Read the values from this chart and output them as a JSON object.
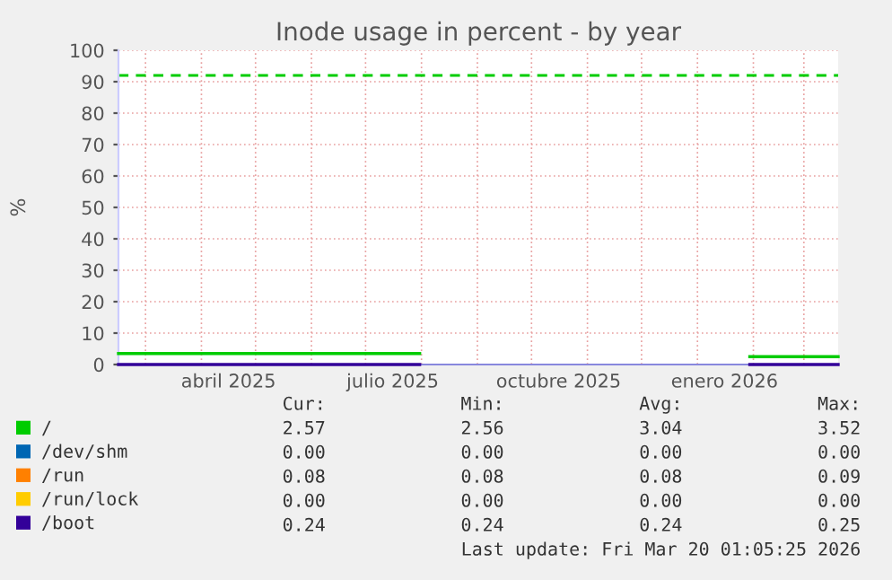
{
  "chart_data": {
    "type": "line",
    "title": "Inode usage in percent - by year",
    "ylabel": "%",
    "x": [
      "2025-02-14",
      "2025-07-31",
      "2025-08-01",
      "2026-01-30",
      "2026-03-19",
      "2026-03-20"
    ],
    "series": [
      {
        "name": "/",
        "color": "#00cc00",
        "values": [
          3.5,
          3.5,
          null,
          2.5,
          2.5,
          2.5
        ]
      },
      {
        "name": "/dev/shm",
        "color": "#0066b3",
        "values": [
          null,
          null,
          null,
          null,
          null,
          null
        ]
      },
      {
        "name": "/run",
        "color": "#ff8000",
        "values": [
          null,
          null,
          null,
          null,
          null,
          null
        ]
      },
      {
        "name": "/run/lock",
        "color": "#ffcc00",
        "values": [
          null,
          null,
          null,
          null,
          null,
          null
        ]
      },
      {
        "name": "/boot",
        "color": "#330099",
        "values": [
          0,
          0,
          null,
          0,
          0,
          0
        ]
      }
    ],
    "xlim": [
      "2025-02-14",
      "2026-03-20"
    ],
    "xticks": [
      {
        "value": "2025-03-01",
        "label": null
      },
      {
        "value": "2025-04-01",
        "label": null
      },
      {
        "value": "2025-04-16",
        "label": "abril 2025"
      },
      {
        "value": "2025-05-01",
        "label": null
      },
      {
        "value": "2025-06-01",
        "label": null
      },
      {
        "value": "2025-07-01",
        "label": null
      },
      {
        "value": "2025-07-16",
        "label": "julio 2025"
      },
      {
        "value": "2025-08-01",
        "label": null
      },
      {
        "value": "2025-09-01",
        "label": null
      },
      {
        "value": "2025-10-01",
        "label": null
      },
      {
        "value": "2025-10-16",
        "label": "octubre 2025"
      },
      {
        "value": "2025-11-01",
        "label": null
      },
      {
        "value": "2025-12-01",
        "label": null
      },
      {
        "value": "2026-01-01",
        "label": null
      },
      {
        "value": "2026-01-16",
        "label": "enero 2026"
      },
      {
        "value": "2026-02-01",
        "label": null
      },
      {
        "value": "2026-03-01",
        "label": null
      }
    ],
    "ylim": [
      0,
      100
    ],
    "yticks": [
      0,
      10,
      20,
      30,
      40,
      50,
      60,
      70,
      80,
      90,
      100
    ],
    "grid": true,
    "legend": "bottom left",
    "ref_lines": [
      {
        "axis": "y",
        "value": 92,
        "label": null,
        "color": "#00cc00",
        "line_style": "dashed"
      }
    ],
    "annotations": [
      "Cur:",
      "Min:",
      "Avg:",
      "Max:",
      "2.57",
      "2.56",
      "3.04",
      "3.52",
      "0.00",
      "0.00",
      "0.00",
      "0.00",
      "0.08",
      "0.08",
      "0.08",
      "0.09",
      "0.00",
      "0.00",
      "0.00",
      "0.00",
      "0.24",
      "0.24",
      "0.24",
      "0.25",
      "Last update: Fri Mar 20 01:05:25 2026"
    ]
  }
}
